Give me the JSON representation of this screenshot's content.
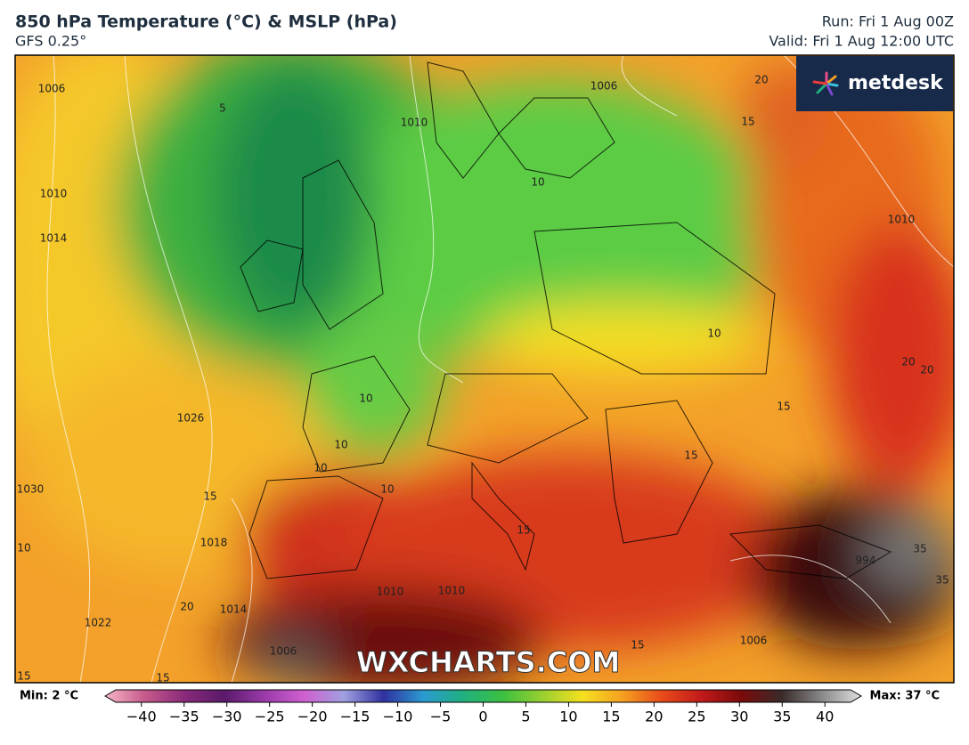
{
  "header": {
    "title": "850 hPa Temperature (°C) & MSLP (hPa)",
    "subtitle": "GFS 0.25°",
    "run": "Run: Fri 1 Aug 00Z",
    "valid": "Valid: Fri 1 Aug 12:00 UTC"
  },
  "logo": "metdesk",
  "watermark": "WXCHARTS.COM",
  "map_labels": [
    "1006",
    "5",
    "1010",
    "1006",
    "15",
    "1010",
    "1014",
    "10",
    "10",
    "10",
    "10",
    "10",
    "10",
    "1026",
    "1030",
    "15",
    "1018",
    "20",
    "1022",
    "1014",
    "1006",
    "1010",
    "15",
    "15",
    "20",
    "1010",
    "20",
    "20",
    "15",
    "15",
    "994",
    "35",
    "35",
    "1006",
    "15",
    "15",
    "1010",
    "10"
  ],
  "colorbar": {
    "min_label": "Min: 2 °C",
    "max_label": "Max: 37 °C",
    "lim": [
      -43,
      43
    ],
    "ticks": [
      {
        "value": -40,
        "label": "−40"
      },
      {
        "value": -35,
        "label": "−35"
      },
      {
        "value": -30,
        "label": "−30"
      },
      {
        "value": -25,
        "label": "−25"
      },
      {
        "value": -20,
        "label": "−20"
      },
      {
        "value": -15,
        "label": "−15"
      },
      {
        "value": -10,
        "label": "−10"
      },
      {
        "value": -5,
        "label": "−5"
      },
      0,
      5,
      10,
      15,
      20,
      25,
      30,
      35,
      40
    ],
    "colors": [
      "#f7b6c8",
      "#c65a8a",
      "#8a2a7a",
      "#5a1a6a",
      "#9a3aaa",
      "#d060d0",
      "#a0a0e0",
      "#3030a0",
      "#2a9ad0",
      "#20b080",
      "#3cc040",
      "#9ad030",
      "#f5e020",
      "#f5a020",
      "#e84a1a",
      "#c01a1a",
      "#7a0a0a",
      "#3a2a2a",
      "#888888",
      "#e0e0e0"
    ]
  }
}
